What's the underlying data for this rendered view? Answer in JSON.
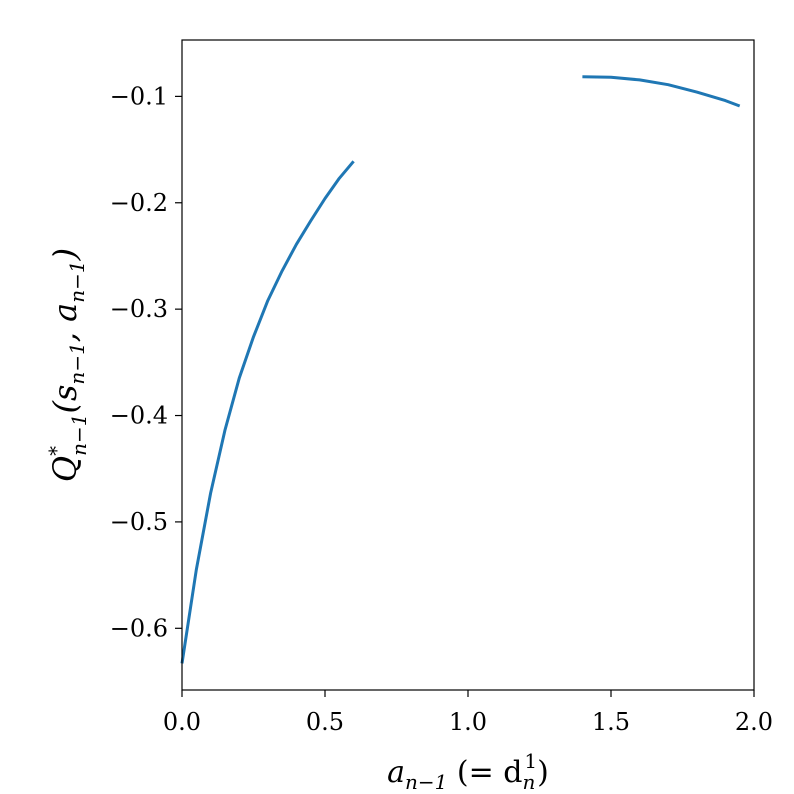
{
  "chart_data": {
    "type": "line",
    "xlabel": {
      "main": "a",
      "sub": "n−1",
      "mid": " (= d",
      "sub2": "n",
      "sup2": "1",
      "end": ")"
    },
    "ylabel": {
      "main": "Q",
      "sup": "*",
      "sub": "n−1",
      "mid": "(s",
      "sub2": "n−1",
      "comma": ", a",
      "sub3": "n−1",
      "end": ")"
    },
    "xlim": [
      0.0,
      2.0
    ],
    "ylim": [
      -0.658,
      -0.047
    ],
    "xticks": [
      0.0,
      0.5,
      1.0,
      1.5,
      2.0
    ],
    "xtick_labels": [
      "0.0",
      "0.5",
      "1.0",
      "1.5",
      "2.0"
    ],
    "yticks": [
      -0.6,
      -0.5,
      -0.4,
      -0.3,
      -0.2,
      -0.1
    ],
    "ytick_labels": [
      "−0.6",
      "−0.5",
      "−0.4",
      "−0.3",
      "−0.2",
      "−0.1"
    ],
    "grid": false,
    "color": "#1f77b4",
    "series": [
      {
        "x": [
          0.0,
          0.05,
          0.1,
          0.15,
          0.2,
          0.25,
          0.3,
          0.35,
          0.4,
          0.45,
          0.5,
          0.55,
          0.6
        ],
        "y": [
          -0.633,
          -0.545,
          -0.473,
          -0.414,
          -0.365,
          -0.326,
          -0.292,
          -0.264,
          -0.239,
          -0.217,
          -0.196,
          -0.177,
          -0.161
        ]
      },
      {
        "x": [
          1.4,
          1.5,
          1.6,
          1.7,
          1.8,
          1.9,
          1.95
        ],
        "y": [
          -0.0815,
          -0.082,
          -0.0845,
          -0.089,
          -0.096,
          -0.104,
          -0.109
        ]
      }
    ]
  }
}
